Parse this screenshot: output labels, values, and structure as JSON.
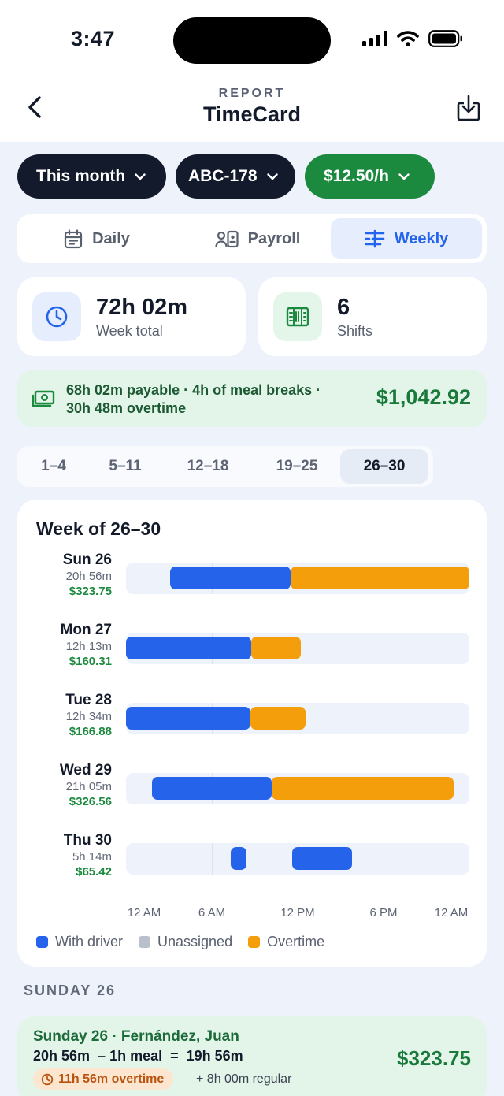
{
  "status_bar": {
    "time": "3:47"
  },
  "header": {
    "subtitle": "REPORT",
    "title": "TimeCard"
  },
  "filters": {
    "period": "This month",
    "unit": "ABC-178",
    "rate": "$12.50/h"
  },
  "view_tabs": [
    {
      "label": "Daily",
      "icon": "calendar-icon",
      "active": false
    },
    {
      "label": "Payroll",
      "icon": "id-card-icon",
      "active": false
    },
    {
      "label": "Weekly",
      "icon": "timeline-icon",
      "active": true
    }
  ],
  "stats": {
    "total": {
      "value": "72h 02m",
      "label": "Week total",
      "icon": "clock-icon"
    },
    "shifts": {
      "value": "6",
      "label": "Shifts",
      "icon": "shifts-icon"
    }
  },
  "pay_summary": {
    "line1": "68h 02m payable · 4h of meal breaks ·",
    "line2": "30h 48m overtime",
    "amount": "$1,042.92",
    "icon": "money-icon"
  },
  "week_tabs": [
    {
      "label": "1–4",
      "active": false
    },
    {
      "label": "5–11",
      "active": false
    },
    {
      "label": "12–18",
      "active": false
    },
    {
      "label": "19–25",
      "active": false
    },
    {
      "label": "26–30",
      "active": true
    }
  ],
  "week_chart": {
    "title": "Week of 26–30",
    "axis_labels": [
      "12 AM",
      "6 AM",
      "12 PM",
      "6 PM",
      "12 AM"
    ],
    "legend": [
      {
        "label": "With driver",
        "color": "#2563eb"
      },
      {
        "label": "Unassigned",
        "color": "#b9bfcb"
      },
      {
        "label": "Overtime",
        "color": "#f59e0b"
      }
    ],
    "days": [
      {
        "name": "Sun 26",
        "hours": "20h 56m",
        "pay": "$323.75",
        "segments": [
          {
            "start": 3.1,
            "end": 11.5,
            "type": "driver"
          },
          {
            "start": 11.5,
            "end": 24.0,
            "type": "ot"
          }
        ]
      },
      {
        "name": "Mon 27",
        "hours": "12h 13m",
        "pay": "$160.31",
        "segments": [
          {
            "start": 0.0,
            "end": 8.75,
            "type": "driver"
          },
          {
            "start": 8.75,
            "end": 12.2,
            "type": "ot"
          }
        ]
      },
      {
        "name": "Tue 28",
        "hours": "12h 34m",
        "pay": "$166.88",
        "segments": [
          {
            "start": 0.0,
            "end": 8.7,
            "type": "driver"
          },
          {
            "start": 8.7,
            "end": 12.55,
            "type": "ot"
          }
        ]
      },
      {
        "name": "Wed 29",
        "hours": "21h 05m",
        "pay": "$326.56",
        "segments": [
          {
            "start": 1.8,
            "end": 10.2,
            "type": "driver"
          },
          {
            "start": 10.2,
            "end": 22.9,
            "type": "ot"
          }
        ]
      },
      {
        "name": "Thu 30",
        "hours": "5h 14m",
        "pay": "$65.42",
        "segments": [
          {
            "start": 7.3,
            "end": 8.4,
            "type": "driver"
          },
          {
            "start": 11.6,
            "end": 15.8,
            "type": "driver"
          }
        ]
      }
    ]
  },
  "section_label": "SUNDAY 26",
  "shift_detail": {
    "title": "Sunday 26 · Fernández, Juan",
    "calc": "20h 56m  – 1h meal  =  19h 56m",
    "overtime": "11h 56m overtime",
    "regular": "+ 8h 00m regular",
    "amount": "$323.75"
  }
}
